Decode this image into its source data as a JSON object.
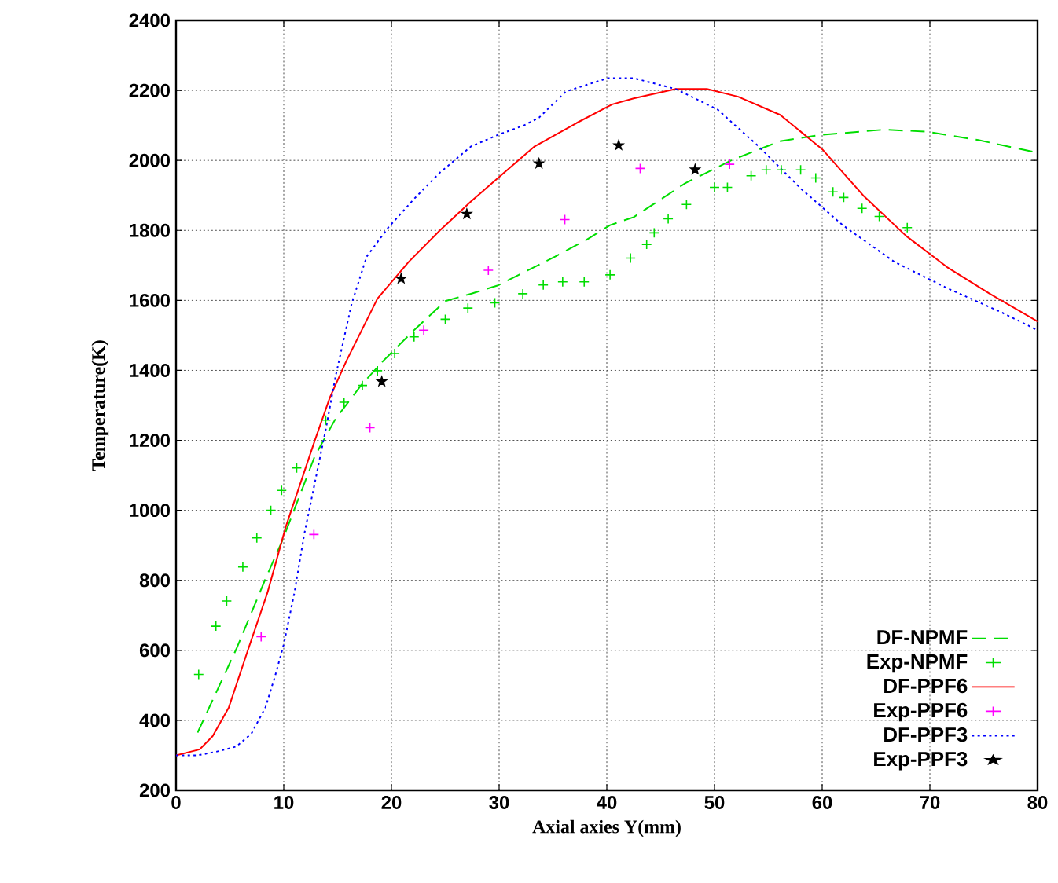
{
  "chart_data": {
    "type": "line",
    "xlabel": "Axial axies Y(mm)",
    "ylabel": "Temperature(K)",
    "xlim": [
      0,
      80
    ],
    "ylim": [
      200,
      2400
    ],
    "xticks": [
      0,
      10,
      20,
      30,
      40,
      50,
      60,
      70,
      80
    ],
    "yticks": [
      200,
      400,
      600,
      800,
      1000,
      1200,
      1400,
      1600,
      1800,
      2000,
      2200,
      2400
    ],
    "grid": true,
    "legend": "bottom right",
    "series": [
      {
        "name": "DF-NPMF",
        "line_style": "dashed",
        "color": "#00dd00",
        "x": [
          2,
          5.6,
          8.3,
          9.9,
          12.9,
          14.8,
          17.2,
          19.2,
          22.1,
          25,
          27.5,
          29.9,
          32.3,
          35.2,
          38.1,
          40.3,
          42.5,
          47.3,
          51.7,
          56.1,
          59.9,
          65.8,
          69.7,
          74.5,
          80
        ],
        "values": [
          365,
          604,
          804,
          916,
          1156,
          1261,
          1358,
          1426,
          1515,
          1598,
          1620,
          1643,
          1680,
          1725,
          1773,
          1815,
          1838,
          1935,
          2002,
          2055,
          2073,
          2088,
          2082,
          2058,
          2022
        ]
      },
      {
        "name": "Exp-NPMF",
        "type": "scatter",
        "marker": "cross",
        "color": "#00dd00",
        "x": [
          2.1,
          3.7,
          4.7,
          6.2,
          7.5,
          8.8,
          9.8,
          11.2,
          13.9,
          15.6,
          17.3,
          18.7,
          20.3,
          22.1,
          25,
          27.1,
          29.6,
          32.2,
          34.1,
          35.9,
          37.9,
          40.3,
          42.2,
          43.7,
          44.4,
          45.7,
          47.4,
          50,
          51.2,
          53.4,
          54.8,
          56.2,
          58,
          59.4,
          61,
          62,
          63.7,
          65.3,
          67.9
        ],
        "values": [
          531,
          669,
          741,
          838,
          921,
          1000,
          1057,
          1121,
          1258,
          1309,
          1357,
          1399,
          1448,
          1496,
          1546,
          1578,
          1593,
          1619,
          1644,
          1653,
          1653,
          1673,
          1721,
          1760,
          1793,
          1833,
          1874,
          1923,
          1923,
          1956,
          1973,
          1973,
          1973,
          1950,
          1910,
          1894,
          1863,
          1840,
          1808
        ]
      },
      {
        "name": "DF-PPF6",
        "line_style": "solid",
        "color": "#ff0000",
        "x": [
          0,
          2.2,
          3.4,
          4.9,
          6.6,
          8.5,
          10.2,
          12.9,
          14.3,
          15.8,
          18.7,
          21.6,
          24.5,
          27.4,
          29.9,
          33.3,
          37.2,
          40.5,
          42.5,
          46.4,
          49.3,
          52.2,
          56.1,
          60,
          63.9,
          67.8,
          71.6,
          75.5,
          80
        ],
        "values": [
          300,
          317,
          355,
          437,
          594,
          766,
          954,
          1201,
          1324,
          1426,
          1605,
          1710,
          1800,
          1883,
          1950,
          2040,
          2107,
          2160,
          2177,
          2204,
          2204,
          2182,
          2130,
          2032,
          1897,
          1784,
          1695,
          1620,
          1540
        ]
      },
      {
        "name": "Exp-PPF6",
        "type": "scatter",
        "marker": "cross",
        "color": "#ff00ff",
        "x": [
          7.9,
          12.8,
          18,
          23,
          29,
          36.1,
          43.1,
          51.4
        ],
        "values": [
          639,
          931,
          1236,
          1515,
          1686,
          1831,
          1977,
          1989
        ]
      },
      {
        "name": "DF-PPF3",
        "line_style": "dotted",
        "color": "#0000ff",
        "x": [
          0,
          2,
          3.7,
          5.6,
          7,
          8.3,
          9.2,
          10,
          11,
          11.9,
          12.9,
          13.9,
          14.8,
          16.3,
          17.7,
          19.7,
          22.1,
          24.5,
          27.4,
          29.9,
          32.3,
          33.7,
          36.2,
          40.1,
          42.5,
          46.4,
          50.3,
          54.1,
          58,
          61.9,
          66.7,
          71.6,
          76.5,
          80
        ],
        "values": [
          300,
          300,
          310,
          325,
          362,
          437,
          527,
          617,
          766,
          931,
          1081,
          1231,
          1381,
          1590,
          1725,
          1808,
          1890,
          1965,
          2040,
          2073,
          2100,
          2122,
          2197,
          2235,
          2235,
          2204,
          2145,
          2040,
          1920,
          1815,
          1710,
          1635,
          1568,
          1515
        ]
      },
      {
        "name": "Exp-PPF3",
        "type": "scatter",
        "marker": "star",
        "color": "#000000",
        "x": [
          19.1,
          20.9,
          27,
          33.7,
          41.1,
          48.2
        ],
        "values": [
          1368,
          1662,
          1847,
          1991,
          2043,
          1974
        ]
      }
    ]
  }
}
